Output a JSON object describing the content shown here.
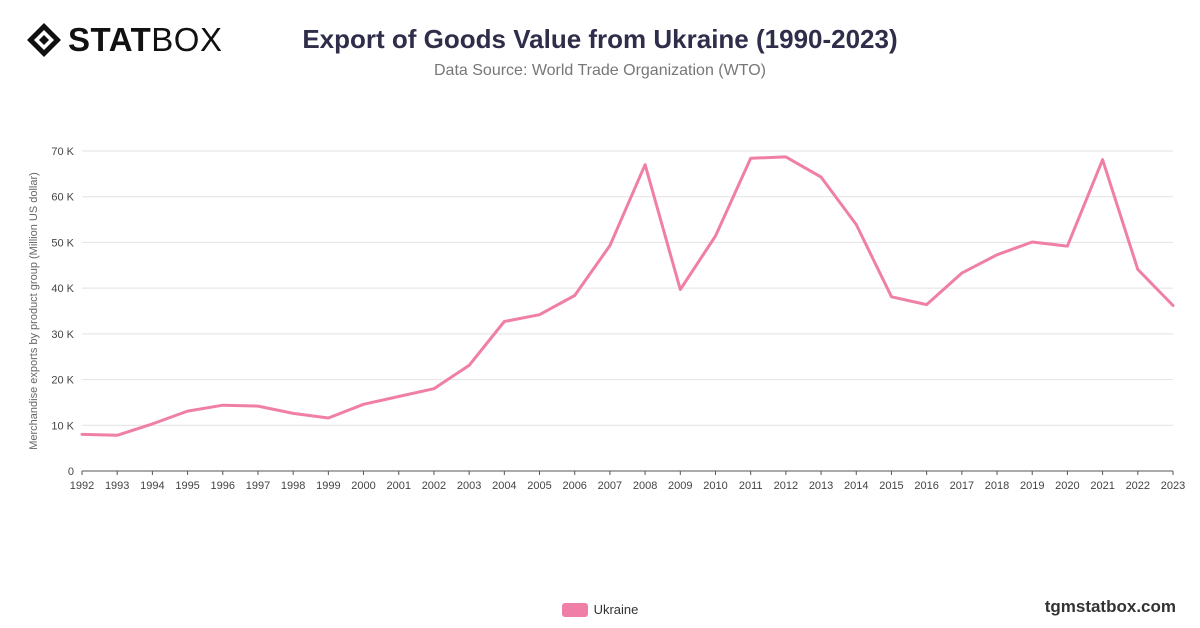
{
  "brand": {
    "bold": "STAT",
    "light": "BOX",
    "watermark": "tgmstatbox.com"
  },
  "colors": {
    "series": "#f07fa8",
    "grid": "#e2e2e2",
    "axis": "#555555",
    "title": "#2e2e4a"
  },
  "chart_data": {
    "type": "line",
    "title": "Export of Goods Value from Ukraine (1990-2023)",
    "subtitle": "Data Source: World Trade Organization (WTO)",
    "ylabel": "Merchandise exports by product group (Million US dollar)",
    "xlabel": "",
    "ylim": [
      0,
      70000
    ],
    "yticks": [
      0,
      10000,
      20000,
      30000,
      40000,
      50000,
      60000,
      70000
    ],
    "ytick_labels": [
      "0",
      "10 K",
      "20 K",
      "30 K",
      "40 K",
      "50 K",
      "60 K",
      "70 K"
    ],
    "grid": true,
    "legend_position": "bottom",
    "x": [
      "1992",
      "1993",
      "1994",
      "1995",
      "1996",
      "1997",
      "1998",
      "1999",
      "2000",
      "2001",
      "2002",
      "2003",
      "2004",
      "2005",
      "2006",
      "2007",
      "2008",
      "2009",
      "2010",
      "2011",
      "2012",
      "2013",
      "2014",
      "2015",
      "2016",
      "2017",
      "2018",
      "2019",
      "2020",
      "2021",
      "2022",
      "2023"
    ],
    "series": [
      {
        "name": "Ukraine",
        "values": [
          8000,
          7800,
          10300,
          13100,
          14400,
          14200,
          12600,
          11600,
          14600,
          16300,
          18000,
          23100,
          32700,
          34200,
          38400,
          49300,
          67000,
          39700,
          51400,
          68400,
          68700,
          64300,
          53900,
          38100,
          36400,
          43300,
          47300,
          50100,
          49200,
          68100,
          44100,
          36200
        ]
      }
    ]
  }
}
